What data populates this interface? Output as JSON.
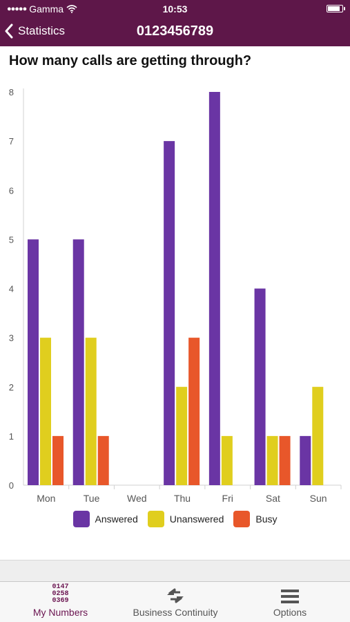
{
  "status_bar": {
    "carrier": "Gamma",
    "time": "10:53",
    "battery_level": 0.9
  },
  "nav": {
    "back_label": "Statistics",
    "title": "0123456789"
  },
  "page": {
    "title": "How many calls are getting through?"
  },
  "chart_data": {
    "type": "bar",
    "title": "",
    "categories": [
      "Mon",
      "Tue",
      "Wed",
      "Thu",
      "Fri",
      "Sat",
      "Sun"
    ],
    "series": [
      {
        "name": "Answered",
        "color": "#6a35a4",
        "values": [
          5,
          5,
          0,
          7,
          8,
          4,
          1
        ]
      },
      {
        "name": "Unanswered",
        "color": "#e0ce1e",
        "values": [
          3,
          3,
          0,
          2,
          1,
          1,
          2
        ]
      },
      {
        "name": "Busy",
        "color": "#e8572a",
        "values": [
          1,
          1,
          0,
          3,
          0,
          1,
          0
        ]
      }
    ],
    "ylim": [
      0,
      8
    ],
    "yticks": [
      0,
      1,
      2,
      3,
      4,
      5,
      6,
      7,
      8
    ],
    "grid": false,
    "legend_position": "bottom"
  },
  "tabs": [
    {
      "label": "My Numbers",
      "icon": "numbers-grid-icon",
      "icon_text": [
        "0147",
        "0258",
        "0369"
      ],
      "active": true
    },
    {
      "label": "Business Continuity",
      "icon": "continuity-arrows-icon",
      "active": false
    },
    {
      "label": "Options",
      "icon": "hamburger-menu-icon",
      "active": false
    }
  ]
}
